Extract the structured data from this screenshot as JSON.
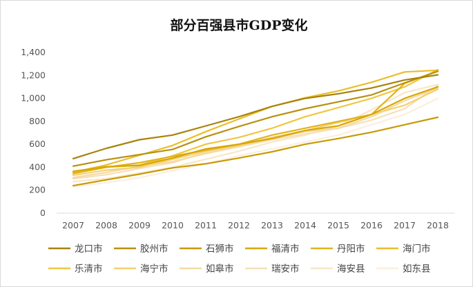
{
  "chart_data": {
    "type": "line",
    "title": "部分百强县市GDP变化",
    "xlabel": "",
    "ylabel": "",
    "ylim": [
      0,
      1400
    ],
    "y_ticks": [
      "0",
      "200",
      "400",
      "600",
      "800",
      "1,000",
      "1,200",
      "1,400"
    ],
    "grid": false,
    "legend_position": "bottom",
    "categories": [
      "2007",
      "2008",
      "2009",
      "2010",
      "2011",
      "2012",
      "2013",
      "2014",
      "2015",
      "2016",
      "2017",
      "2018"
    ],
    "series": [
      {
        "name": "龙口市",
        "color": "#a8820a",
        "values": [
          475,
          565,
          640,
          680,
          760,
          840,
          930,
          1000,
          1040,
          1090,
          1160,
          1205
        ]
      },
      {
        "name": "胶州市",
        "color": "#b8900e",
        "values": [
          410,
          465,
          510,
          555,
          665,
          755,
          840,
          910,
          970,
          1030,
          1135,
          1235
        ]
      },
      {
        "name": "石狮市",
        "color": "#c79a00",
        "values": [
          240,
          290,
          340,
          395,
          430,
          480,
          535,
          600,
          650,
          705,
          770,
          835
        ]
      },
      {
        "name": "福清市",
        "color": "#d6a800",
        "values": [
          365,
          405,
          415,
          480,
          560,
          600,
          650,
          720,
          760,
          860,
          1000,
          1100
        ]
      },
      {
        "name": "丹阳市",
        "color": "#e2b21c",
        "values": [
          345,
          400,
          440,
          495,
          550,
          600,
          680,
          740,
          800,
          860,
          1130,
          1240
        ]
      },
      {
        "name": "海门市",
        "color": "#ebbd28",
        "values": [
          355,
          420,
          505,
          590,
          710,
          820,
          930,
          1005,
          1065,
          1140,
          1230,
          1245
        ]
      },
      {
        "name": "乐清市",
        "color": "#f0c640",
        "values": [
          345,
          400,
          420,
          500,
          600,
          660,
          740,
          840,
          920,
          1000,
          1100,
          1250
        ]
      },
      {
        "name": "海宁市",
        "color": "#f5d070",
        "values": [
          330,
          375,
          400,
          470,
          540,
          590,
          660,
          720,
          790,
          860,
          940,
          1080
        ]
      },
      {
        "name": "如皋市",
        "color": "#f5d9a0",
        "values": [
          310,
          355,
          410,
          450,
          520,
          580,
          650,
          710,
          740,
          840,
          980,
          1090
        ]
      },
      {
        "name": "瑞安市",
        "color": "#f7dfb5",
        "values": [
          300,
          335,
          390,
          440,
          530,
          580,
          640,
          690,
          740,
          810,
          910,
          1110
        ]
      },
      {
        "name": "海安县",
        "color": "#f9e6c6",
        "values": [
          275,
          300,
          350,
          400,
          470,
          540,
          620,
          680,
          760,
          900,
          1050,
          1120
        ]
      },
      {
        "name": "如东县",
        "color": "#fbeede",
        "values": [
          230,
          265,
          310,
          370,
          430,
          500,
          560,
          620,
          680,
          770,
          860,
          1000
        ]
      }
    ]
  }
}
